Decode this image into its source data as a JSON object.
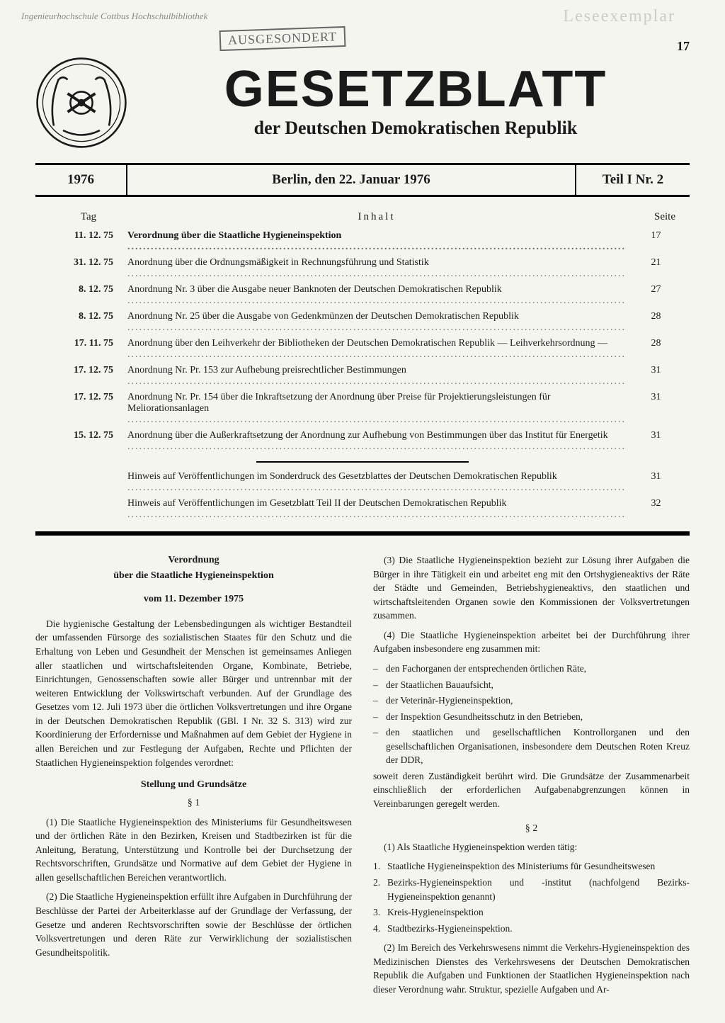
{
  "stamps": {
    "library": "Ingenieurhochschule Cottbus\nHochschulbibliothek",
    "ausgesondert": "AUSGESONDERT",
    "leseexemplar": "Leseexemplar"
  },
  "page_number": "17",
  "masthead": {
    "title": "GESETZBLATT",
    "subtitle": "der Deutschen Demokratischen Republik"
  },
  "datebar": {
    "year": "1976",
    "date": "Berlin, den 22. Januar 1976",
    "issue": "Teil I Nr. 2"
  },
  "toc": {
    "headers": {
      "tag": "Tag",
      "inhalt": "Inhalt",
      "seite": "Seite"
    },
    "rows": [
      {
        "date": "11. 12. 75",
        "title": "Verordnung über die Staatliche Hygieneinspektion",
        "page": "17",
        "bold": true
      },
      {
        "date": "31. 12. 75",
        "title": "Anordnung über die Ordnungsmäßigkeit in Rechnungsführung und Statistik",
        "page": "21"
      },
      {
        "date": "8. 12. 75",
        "title": "Anordnung Nr. 3 über die Ausgabe neuer Banknoten der Deutschen Demokratischen Republik",
        "page": "27"
      },
      {
        "date": "8. 12. 75",
        "title": "Anordnung Nr. 25 über die Ausgabe von Gedenkmünzen der Deutschen Demokratischen Republik",
        "page": "28"
      },
      {
        "date": "17. 11. 75",
        "title": "Anordnung über den Leihverkehr der Bibliotheken der Deutschen Demokratischen Republik — Leihverkehrsordnung —",
        "page": "28"
      },
      {
        "date": "17. 12. 75",
        "title": "Anordnung Nr. Pr. 153 zur Aufhebung preisrechtlicher Bestimmungen",
        "page": "31"
      },
      {
        "date": "17. 12. 75",
        "title": "Anordnung Nr. Pr. 154 über die Inkraftsetzung der Anordnung über Preise für Projektierungsleistungen für Meliorationsanlagen",
        "page": "31"
      },
      {
        "date": "15. 12. 75",
        "title": "Anordnung über die Außerkraftsetzung der Anordnung zur Aufhebung von Bestimmungen über das Institut für Energetik",
        "page": "31"
      }
    ],
    "extra": [
      {
        "title": "Hinweis auf Veröffentlichungen im Sonderdruck des Gesetzblattes der Deutschen Demokratischen Republik",
        "page": "31"
      },
      {
        "title": "Hinweis auf Veröffentlichungen im Gesetzblatt Teil II der Deutschen Demokratischen Republik",
        "page": "32"
      }
    ]
  },
  "article": {
    "title1": "Verordnung",
    "title2": "über die Staatliche Hygieneinspektion",
    "date": "vom 11. Dezember 1975",
    "intro": "Die hygienische Gestaltung der Lebensbedingungen als wichtiger Bestandteil der umfassenden Fürsorge des sozialistischen Staates für den Schutz und die Erhaltung von Leben und Gesundheit der Menschen ist gemeinsames Anliegen aller staatlichen und wirtschaftsleitenden Organe, Kombinate, Betriebe, Einrichtungen, Genossenschaften sowie aller Bürger und untrennbar mit der weiteren Entwicklung der Volkswirtschaft verbunden. Auf der Grundlage des Gesetzes vom 12. Juli 1973 über die örtlichen Volksvertretungen und ihre Organe in der Deutschen Demokratischen Republik (GBl. I Nr. 32 S. 313) wird zur Koordinierung der Erfordernisse und Maßnahmen auf dem Gebiet der Hygiene in allen Bereichen und zur Festlegung der Aufgaben, Rechte und Pflichten der Staatlichen Hygieneinspektion folgendes verordnet:",
    "subsection1": "Stellung und Grundsätze",
    "s1": "§ 1",
    "p1_1": "(1) Die Staatliche Hygieneinspektion des Ministeriums für Gesundheitswesen und der örtlichen Räte in den Bezirken, Kreisen und Stadtbezirken ist für die Anleitung, Beratung, Unterstützung und Kontrolle bei der Durchsetzung der Rechtsvorschriften, Grundsätze und Normative auf dem Gebiet der Hygiene in allen gesellschaftlichen Bereichen verantwortlich.",
    "p1_2": "(2) Die Staatliche Hygieneinspektion erfüllt ihre Aufgaben in Durchführung der Beschlüsse der Partei der Arbeiterklasse auf der Grundlage der Verfassung, der Gesetze und anderen Rechtsvorschriften sowie der Beschlüsse der örtlichen Volksvertretungen und deren Räte zur Verwirklichung der sozialistischen Gesundheitspolitik.",
    "p1_3": "(3) Die Staatliche Hygieneinspektion bezieht zur Lösung ihrer Aufgaben die Bürger in ihre Tätigkeit ein und arbeitet eng mit den Ortshygieneaktivs der Räte der Städte und Gemeinden, Betriebshygieneaktivs, den staatlichen und wirtschaftsleitenden Organen sowie den Kommissionen der Volksvertretungen zusammen.",
    "p1_4": "(4) Die Staatliche Hygieneinspektion arbeitet bei der Durchführung ihrer Aufgaben insbesondere eng zusammen mit:",
    "list1": [
      "den Fachorganen der entsprechenden örtlichen Räte,",
      "der Staatlichen Bauaufsicht,",
      "der Veterinär-Hygieneinspektion,",
      "der Inspektion Gesundheitsschutz in den Betrieben,",
      "den staatlichen und gesellschaftlichen Kontrollorganen und den gesellschaftlichen Organisationen, insbesondere dem Deutschen Roten Kreuz der DDR,"
    ],
    "p1_5": "soweit deren Zuständigkeit berührt wird. Die Grundsätze der Zusammenarbeit einschließlich der erforderlichen Aufgabenabgrenzungen können in Vereinbarungen geregelt werden.",
    "s2": "§ 2",
    "p2_1": "(1) Als Staatliche Hygieneinspektion werden tätig:",
    "list2": [
      "Staatliche Hygieneinspektion des Ministeriums für Gesundheitswesen",
      "Bezirks-Hygieneinspektion und -institut (nachfolgend Bezirks-Hygieneinspektion genannt)",
      "Kreis-Hygieneinspektion",
      "Stadtbezirks-Hygieneinspektion."
    ],
    "p2_2": "(2) Im Bereich des Verkehrswesens nimmt die Verkehrs-Hygieneinspektion des Medizinischen Dienstes des Verkehrswesens der Deutschen Demokratischen Republik die Aufgaben und Funktionen der Staatlichen Hygieneinspektion nach dieser Verordnung wahr. Struktur, spezielle Aufgaben und Ar-"
  }
}
